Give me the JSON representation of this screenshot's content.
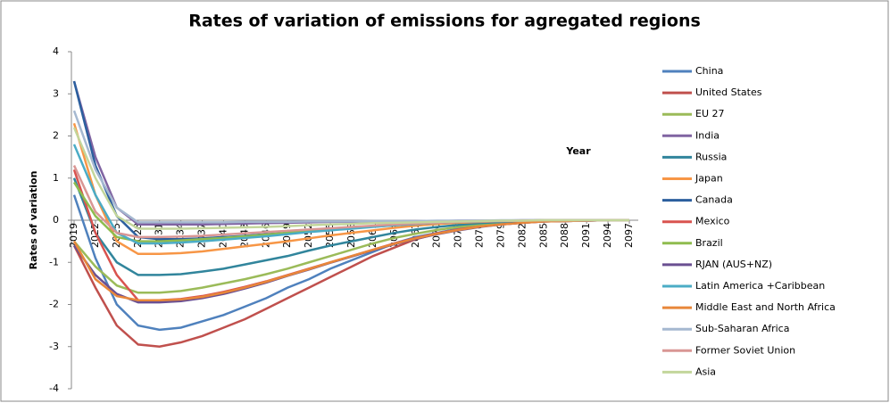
{
  "chart_data": {
    "type": "line",
    "title": "Rates of variation of emissions for agregated regions",
    "y_label": "Rates of variation",
    "annotation": "Year",
    "categories": [
      "2019",
      "2022",
      "2025",
      "2028",
      "2031",
      "2034",
      "2037",
      "2040",
      "2043",
      "2046",
      "2049",
      "2052",
      "2055",
      "2058",
      "2061",
      "2064",
      "2067",
      "2070",
      "2073",
      "2076",
      "2079",
      "2082",
      "2085",
      "2088",
      "2091",
      "2094",
      "2097"
    ],
    "ylim": [
      -4,
      4
    ],
    "yticks": [
      -4,
      -3,
      -2,
      -1,
      0,
      1,
      2,
      3,
      4
    ],
    "grid": false,
    "legend": "right",
    "series": [
      {
        "name": "China",
        "color": "#4f81bd",
        "values": [
          0.6,
          -0.9,
          -2.0,
          -2.5,
          -2.6,
          -2.55,
          -2.4,
          -2.25,
          -2.05,
          -1.85,
          -1.6,
          -1.4,
          -1.15,
          -0.95,
          -0.75,
          -0.55,
          -0.4,
          -0.3,
          -0.2,
          -0.13,
          -0.08,
          -0.05,
          -0.03,
          -0.02,
          -0.01,
          0,
          0
        ]
      },
      {
        "name": "United States",
        "color": "#c0504d",
        "values": [
          -0.6,
          -1.6,
          -2.5,
          -2.95,
          -3.0,
          -2.9,
          -2.75,
          -2.55,
          -2.35,
          -2.1,
          -1.85,
          -1.6,
          -1.35,
          -1.1,
          -0.85,
          -0.65,
          -0.45,
          -0.32,
          -0.22,
          -0.14,
          -0.09,
          -0.05,
          -0.03,
          -0.02,
          -0.01,
          0,
          0
        ]
      },
      {
        "name": "EU 27",
        "color": "#9bbb59",
        "values": [
          -0.5,
          -1.1,
          -1.55,
          -1.72,
          -1.72,
          -1.68,
          -1.6,
          -1.5,
          -1.4,
          -1.28,
          -1.15,
          -1.0,
          -0.85,
          -0.7,
          -0.55,
          -0.42,
          -0.32,
          -0.23,
          -0.16,
          -0.1,
          -0.06,
          -0.04,
          -0.02,
          -0.01,
          0,
          0,
          0
        ]
      },
      {
        "name": "India",
        "color": "#8064a2",
        "values": [
          3.3,
          1.5,
          0.3,
          -0.1,
          -0.1,
          -0.1,
          -0.1,
          -0.09,
          -0.08,
          -0.07,
          -0.06,
          -0.05,
          -0.04,
          -0.04,
          -0.03,
          -0.03,
          -0.02,
          -0.02,
          -0.01,
          -0.01,
          -0.01,
          0,
          0,
          0,
          0,
          0,
          0
        ]
      },
      {
        "name": "Russia",
        "color": "#31859c",
        "values": [
          1.0,
          -0.3,
          -1.0,
          -1.3,
          -1.3,
          -1.28,
          -1.22,
          -1.15,
          -1.05,
          -0.95,
          -0.85,
          -0.72,
          -0.6,
          -0.5,
          -0.4,
          -0.3,
          -0.22,
          -0.16,
          -0.11,
          -0.07,
          -0.04,
          -0.02,
          -0.01,
          0,
          0,
          0,
          0
        ]
      },
      {
        "name": "Japan",
        "color": "#f79646",
        "values": [
          2.3,
          0.6,
          -0.5,
          -0.8,
          -0.8,
          -0.78,
          -0.74,
          -0.68,
          -0.62,
          -0.56,
          -0.5,
          -0.43,
          -0.36,
          -0.3,
          -0.24,
          -0.18,
          -0.13,
          -0.09,
          -0.06,
          -0.04,
          -0.02,
          -0.01,
          0,
          0,
          0,
          0,
          0
        ]
      },
      {
        "name": "Canada",
        "color": "#2c5f9e",
        "values": [
          3.3,
          1.3,
          0.1,
          -0.4,
          -0.45,
          -0.45,
          -0.43,
          -0.4,
          -0.37,
          -0.33,
          -0.3,
          -0.26,
          -0.22,
          -0.18,
          -0.15,
          -0.12,
          -0.09,
          -0.06,
          -0.04,
          -0.03,
          -0.02,
          -0.01,
          0,
          0,
          0,
          0,
          0
        ]
      },
      {
        "name": "Mexico",
        "color": "#d9534f",
        "values": [
          1.2,
          -0.3,
          -1.3,
          -1.9,
          -1.9,
          -1.87,
          -1.8,
          -1.7,
          -1.58,
          -1.45,
          -1.3,
          -1.15,
          -1.0,
          -0.85,
          -0.7,
          -0.55,
          -0.42,
          -0.31,
          -0.22,
          -0.15,
          -0.1,
          -0.06,
          -0.03,
          -0.02,
          -0.01,
          0,
          0
        ]
      },
      {
        "name": "Brazil",
        "color": "#8fbc4f",
        "values": [
          0.9,
          0.1,
          -0.4,
          -0.5,
          -0.5,
          -0.48,
          -0.45,
          -0.42,
          -0.38,
          -0.34,
          -0.3,
          -0.26,
          -0.22,
          -0.18,
          -0.14,
          -0.11,
          -0.08,
          -0.06,
          -0.04,
          -0.03,
          -0.02,
          -0.01,
          0,
          0,
          0,
          0,
          0
        ]
      },
      {
        "name": "RJAN (AUS+NZ)",
        "color": "#6a4f91",
        "values": [
          -0.6,
          -1.3,
          -1.75,
          -1.95,
          -1.95,
          -1.92,
          -1.85,
          -1.75,
          -1.62,
          -1.48,
          -1.32,
          -1.17,
          -1.01,
          -0.86,
          -0.71,
          -0.57,
          -0.44,
          -0.33,
          -0.24,
          -0.16,
          -0.1,
          -0.06,
          -0.03,
          -0.02,
          -0.01,
          0,
          0
        ]
      },
      {
        "name": "Latin America +Caribbean",
        "color": "#4bacc6",
        "values": [
          1.8,
          0.6,
          -0.3,
          -0.55,
          -0.55,
          -0.53,
          -0.5,
          -0.46,
          -0.42,
          -0.38,
          -0.33,
          -0.28,
          -0.24,
          -0.2,
          -0.16,
          -0.12,
          -0.09,
          -0.06,
          -0.04,
          -0.03,
          -0.02,
          -0.01,
          0,
          0,
          0,
          0,
          0
        ]
      },
      {
        "name": "Middle East and North Africa",
        "color": "#e8873a",
        "values": [
          -0.5,
          -1.4,
          -1.8,
          -1.9,
          -1.9,
          -1.88,
          -1.82,
          -1.72,
          -1.6,
          -1.46,
          -1.31,
          -1.16,
          -1.0,
          -0.85,
          -0.7,
          -0.56,
          -0.43,
          -0.32,
          -0.23,
          -0.15,
          -0.1,
          -0.06,
          -0.03,
          -0.02,
          -0.01,
          0,
          0
        ]
      },
      {
        "name": "Sub-Saharan Africa",
        "color": "#a5b8d0",
        "values": [
          2.6,
          1.2,
          0.3,
          -0.05,
          -0.05,
          -0.05,
          -0.05,
          -0.05,
          -0.04,
          -0.04,
          -0.04,
          -0.03,
          -0.03,
          -0.03,
          -0.02,
          -0.02,
          -0.02,
          -0.01,
          -0.01,
          -0.01,
          0,
          0,
          0,
          0,
          0,
          0,
          0
        ]
      },
      {
        "name": "Former Soviet Union",
        "color": "#d99694",
        "values": [
          1.3,
          0.2,
          -0.3,
          -0.4,
          -0.4,
          -0.39,
          -0.37,
          -0.34,
          -0.31,
          -0.28,
          -0.25,
          -0.22,
          -0.19,
          -0.16,
          -0.13,
          -0.1,
          -0.08,
          -0.06,
          -0.04,
          -0.03,
          -0.02,
          -0.01,
          0,
          0,
          0,
          0,
          0
        ]
      },
      {
        "name": "Asia",
        "color": "#c3d69b",
        "values": [
          2.2,
          1.0,
          0.1,
          -0.2,
          -0.2,
          -0.2,
          -0.19,
          -0.18,
          -0.17,
          -0.16,
          -0.14,
          -0.12,
          -0.1,
          -0.09,
          -0.07,
          -0.06,
          -0.05,
          -0.04,
          -0.03,
          -0.02,
          -0.01,
          -0.01,
          0,
          0,
          0,
          0,
          0
        ]
      }
    ]
  }
}
